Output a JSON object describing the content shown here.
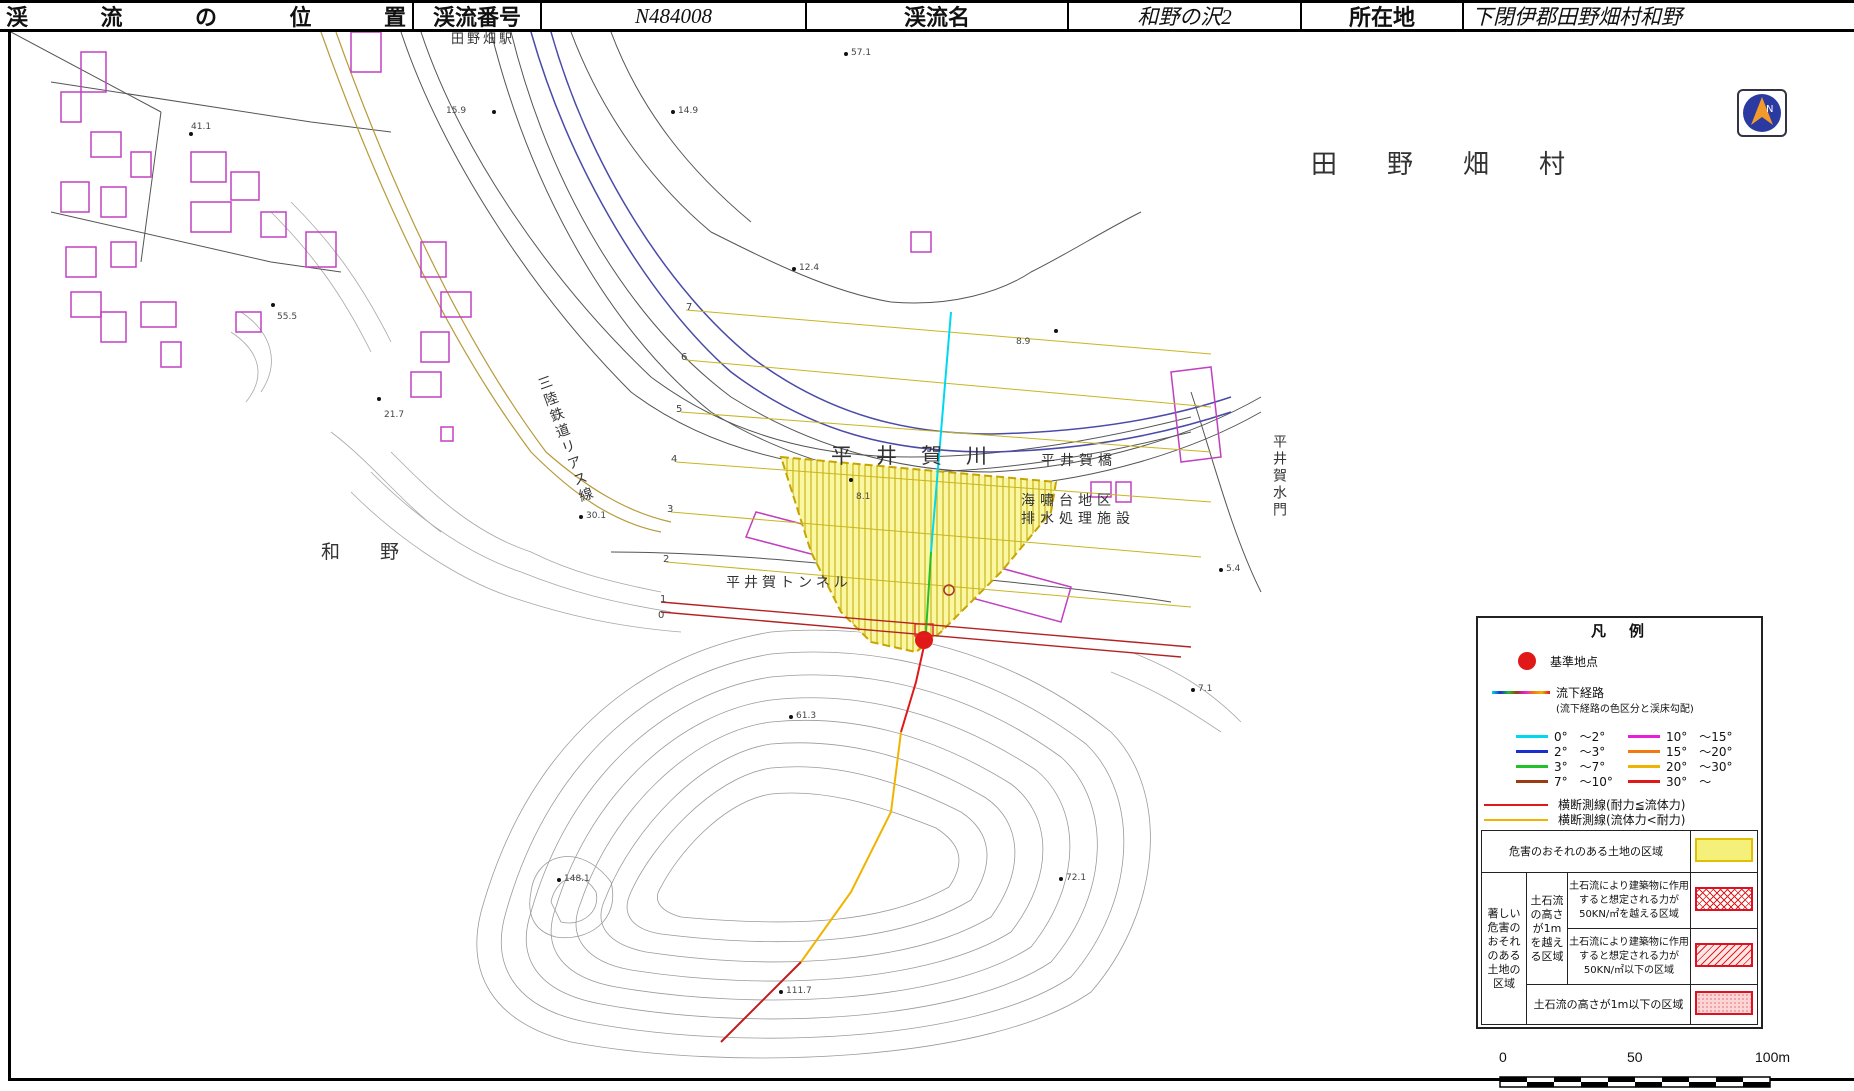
{
  "header": {
    "location_label": "渓流の位置",
    "stream_number_label": "渓流番号",
    "stream_number": "N484008",
    "stream_name_label": "渓流名",
    "stream_name": "和野の沢2",
    "address_label": "所在地",
    "address": "下閉伊郡田野畑村和野"
  },
  "map_labels": {
    "village": "田野畑村",
    "wano": "和野",
    "river": "平井賀川",
    "bridge": "平井賀橋",
    "tunnel": "平井賀トンネル",
    "facility_line1": "海嘯台地区",
    "facility_line2": "排水処理施設",
    "sluice": "平井賀水門",
    "railway": "三陸鉄道リアス線",
    "station": "田野畑駅"
  },
  "section_numbers": [
    "0",
    "1",
    "2",
    "3",
    "4",
    "5",
    "6",
    "7"
  ],
  "spot_heights": [
    "57.1",
    "15.9",
    "14.9",
    "41.1",
    "12.4",
    "8.9",
    "55.5",
    "21.7",
    "30.1",
    "8.1",
    "5.4",
    "7.1",
    "61.3",
    "72.1",
    "148.1",
    "111.7"
  ],
  "legend": {
    "title": "凡　例",
    "reference_point": "基準地点",
    "flow_path": "流下経路",
    "flow_path_note": "(流下経路の色区分と渓床勾配)",
    "gradients": [
      {
        "label": "0°　〜2°",
        "color": "#00d8f0"
      },
      {
        "label": "2°　〜3°",
        "color": "#1a2fd0"
      },
      {
        "label": "3°　〜7°",
        "color": "#21c12a"
      },
      {
        "label": "7°　〜10°",
        "color": "#9a3b12"
      },
      {
        "label": "10°　〜15°",
        "color": "#e81fd8"
      },
      {
        "label": "15°　〜20°",
        "color": "#f07a10"
      },
      {
        "label": "20°　〜30°",
        "color": "#f0b400"
      },
      {
        "label": "30°　〜",
        "color": "#e01818"
      }
    ],
    "cross_red": "横断測線(耐力≦流体力)",
    "cross_yellow": "横断測線(流体力<耐力)",
    "hazard_area": "危害のおそれのある土地の区域",
    "severe_area": "著しい危害のおそれのある土地の区域",
    "debris_over_1m": "土石流の高さが1mを越える区域",
    "force_over": "土石流により建築物に作用すると想定される力が50KN/㎡を越える区域",
    "force_under": "土石流により建築物に作用すると想定される力が50KN/㎡以下の区域",
    "debris_under_1m": "土石流の高さが1m以下の区域"
  },
  "scale": {
    "zero": "0",
    "mid": "50",
    "max": "100m"
  },
  "colors": {
    "hazard_yellow": "#f5f07a",
    "severe_red": "#e02020",
    "building": "#c040c0"
  }
}
